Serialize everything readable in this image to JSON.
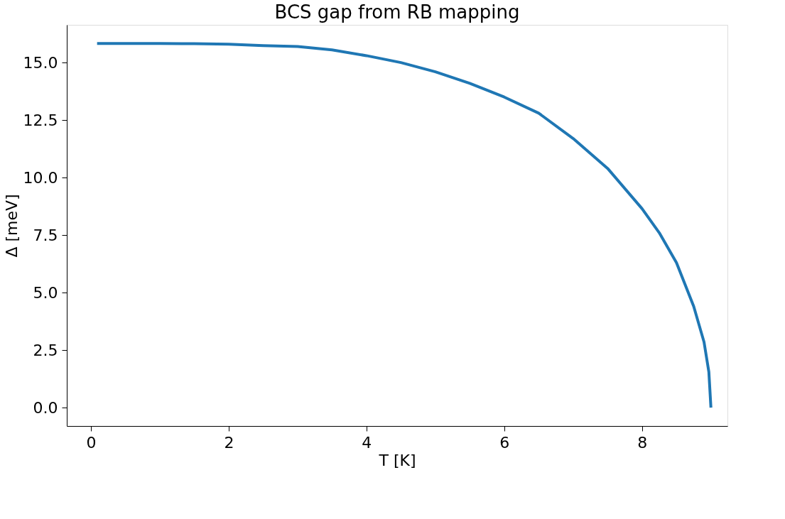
{
  "chart_data": {
    "type": "line",
    "title": "BCS gap from RB mapping",
    "xlabel": "T [K]",
    "ylabel": "Δ [meV]",
    "x": [
      0.09,
      0.5,
      1.0,
      1.5,
      2.0,
      2.5,
      3.0,
      3.5,
      4.0,
      4.5,
      5.0,
      5.5,
      6.0,
      6.5,
      7.0,
      7.5,
      8.0,
      8.25,
      8.5,
      8.75,
      8.9,
      8.97,
      9.0
    ],
    "series": [
      {
        "color": "#1f77b4",
        "values": [
          15.83,
          15.83,
          15.83,
          15.82,
          15.8,
          15.74,
          15.7,
          15.55,
          15.3,
          15.0,
          14.6,
          14.1,
          13.5,
          12.8,
          11.7,
          10.4,
          8.65,
          7.6,
          6.3,
          4.4,
          2.85,
          1.55,
          0.0
        ]
      }
    ],
    "xlim": [
      -0.35,
      9.24
    ],
    "ylim": [
      -0.8,
      16.64
    ],
    "xticks": [
      0,
      2,
      4,
      6,
      8
    ],
    "yticks": [
      {
        "value": 0,
        "label": "0.0"
      },
      {
        "value": 2.5,
        "label": "2.5"
      },
      {
        "value": 5,
        "label": "5.0"
      },
      {
        "value": 7.5,
        "label": "7.5"
      },
      {
        "value": 10,
        "label": "10.0"
      },
      {
        "value": 12.5,
        "label": "12.5"
      },
      {
        "value": 15,
        "label": "15.0"
      }
    ],
    "grid": false,
    "line_style": "solid",
    "marker": "none"
  }
}
